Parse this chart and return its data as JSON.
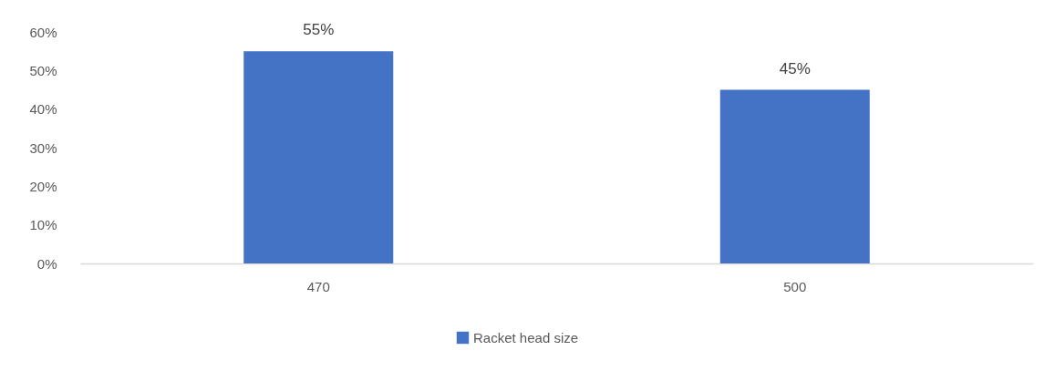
{
  "chart_data": {
    "type": "bar",
    "categories": [
      "470",
      "500"
    ],
    "series": [
      {
        "name": "Racket head size",
        "color": "#4472c4",
        "values": [
          55,
          45
        ],
        "value_labels": [
          "55%",
          "45%"
        ]
      }
    ],
    "ylim": [
      0,
      60
    ],
    "yticks": [
      {
        "value": 0,
        "label": "0%"
      },
      {
        "value": 10,
        "label": "10%"
      },
      {
        "value": 20,
        "label": "20%"
      },
      {
        "value": 30,
        "label": "30%"
      },
      {
        "value": 40,
        "label": "40%"
      },
      {
        "value": 50,
        "label": "50%"
      },
      {
        "value": 60,
        "label": "60%"
      }
    ],
    "legend": "bottom"
  }
}
